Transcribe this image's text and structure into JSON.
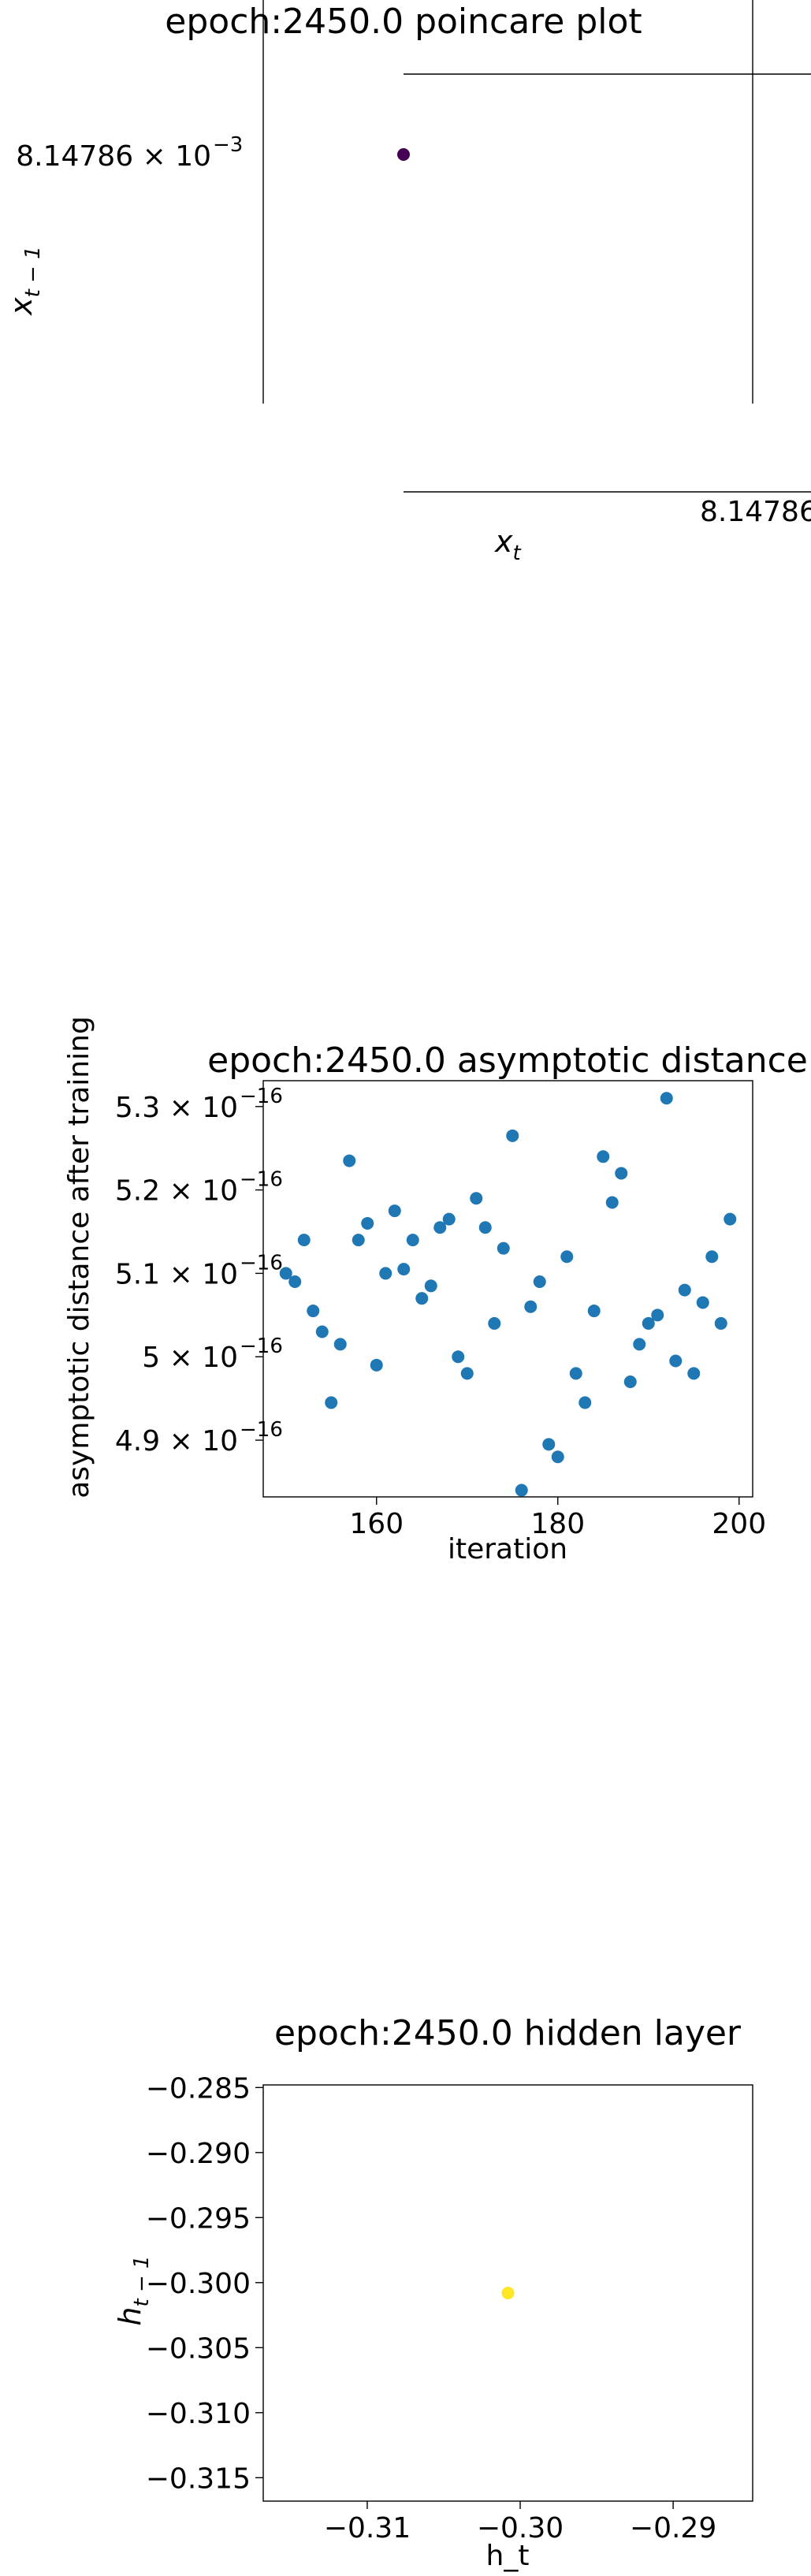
{
  "chart_data": [
    {
      "type": "scatter",
      "title": "epoch:2450.0 poincare plot",
      "xlabel": "x_t",
      "ylabel": "x_{t-1}",
      "x_tick_label": "8.14786",
      "y_tick_label": {
        "mantissa": "8.14786",
        "base": "10",
        "exp": "−3"
      },
      "points": [
        {
          "x": 0.00814786,
          "y": 0.00814786
        }
      ],
      "point_color": "#440154",
      "grid": false
    },
    {
      "type": "scatter",
      "title": "epoch:2450.0 asymptotic distance",
      "xlabel": "iteration",
      "ylabel": "asymptotic distance after training",
      "xlim": [
        147.5,
        201.5
      ],
      "ylim": [
        4.832,
        5.331
      ],
      "x_ticks": [
        160,
        180,
        200
      ],
      "y_ticks": [
        {
          "value": 4.9,
          "mantissa": "4.9",
          "base": "10",
          "exp": "−16"
        },
        {
          "value": 5.0,
          "mantissa": "5",
          "base": "10",
          "exp": "−16"
        },
        {
          "value": 5.1,
          "mantissa": "5.1",
          "base": "10",
          "exp": "−16"
        },
        {
          "value": 5.2,
          "mantissa": "5.2",
          "base": "10",
          "exp": "−16"
        },
        {
          "value": 5.3,
          "mantissa": "5.3",
          "base": "10",
          "exp": "−16"
        }
      ],
      "y_scale_note": "values ×1e-16",
      "point_color": "#1f77b4",
      "grid": false,
      "x": [
        150,
        151,
        152,
        153,
        154,
        155,
        156,
        157,
        158,
        159,
        160,
        161,
        162,
        163,
        164,
        165,
        166,
        167,
        168,
        169,
        170,
        171,
        172,
        173,
        174,
        175,
        176,
        177,
        178,
        179,
        180,
        181,
        182,
        183,
        184,
        185,
        186,
        187,
        188,
        189,
        190,
        191,
        192,
        193,
        194,
        195,
        196,
        197,
        198,
        199
      ],
      "y": [
        5.1,
        5.09,
        5.14,
        5.055,
        5.03,
        4.945,
        5.015,
        5.235,
        5.14,
        5.16,
        4.99,
        5.1,
        5.175,
        5.105,
        5.14,
        5.07,
        5.085,
        5.155,
        5.165,
        5.0,
        4.98,
        5.19,
        5.155,
        5.04,
        5.13,
        5.265,
        4.84,
        5.06,
        5.09,
        4.895,
        4.88,
        5.12,
        4.98,
        4.945,
        5.055,
        5.24,
        5.185,
        5.22,
        4.97,
        5.015,
        5.04,
        5.05,
        5.31,
        4.995,
        5.08,
        4.98,
        5.065,
        5.12,
        5.04,
        5.165
      ]
    },
    {
      "type": "scatter",
      "title": "epoch:2450.0 hidden layer",
      "xlabel": "h_t",
      "ylabel": "h_{t-1}",
      "xlim": [
        -0.3168,
        -0.2848
      ],
      "ylim": [
        -0.3168,
        -0.2848
      ],
      "x_ticks": [
        -0.31,
        -0.3,
        -0.29
      ],
      "x_tick_labels": [
        "−0.31",
        "−0.30",
        "−0.29"
      ],
      "y_ticks": [
        -0.315,
        -0.31,
        -0.305,
        -0.3,
        -0.295,
        -0.29,
        -0.285
      ],
      "y_tick_labels": [
        "−0.315",
        "−0.310",
        "−0.305",
        "−0.300",
        "−0.295",
        "−0.290",
        "−0.285"
      ],
      "points": [
        {
          "x": -0.3008,
          "y": -0.3008
        }
      ],
      "point_color": "#fde725",
      "grid": false
    }
  ]
}
